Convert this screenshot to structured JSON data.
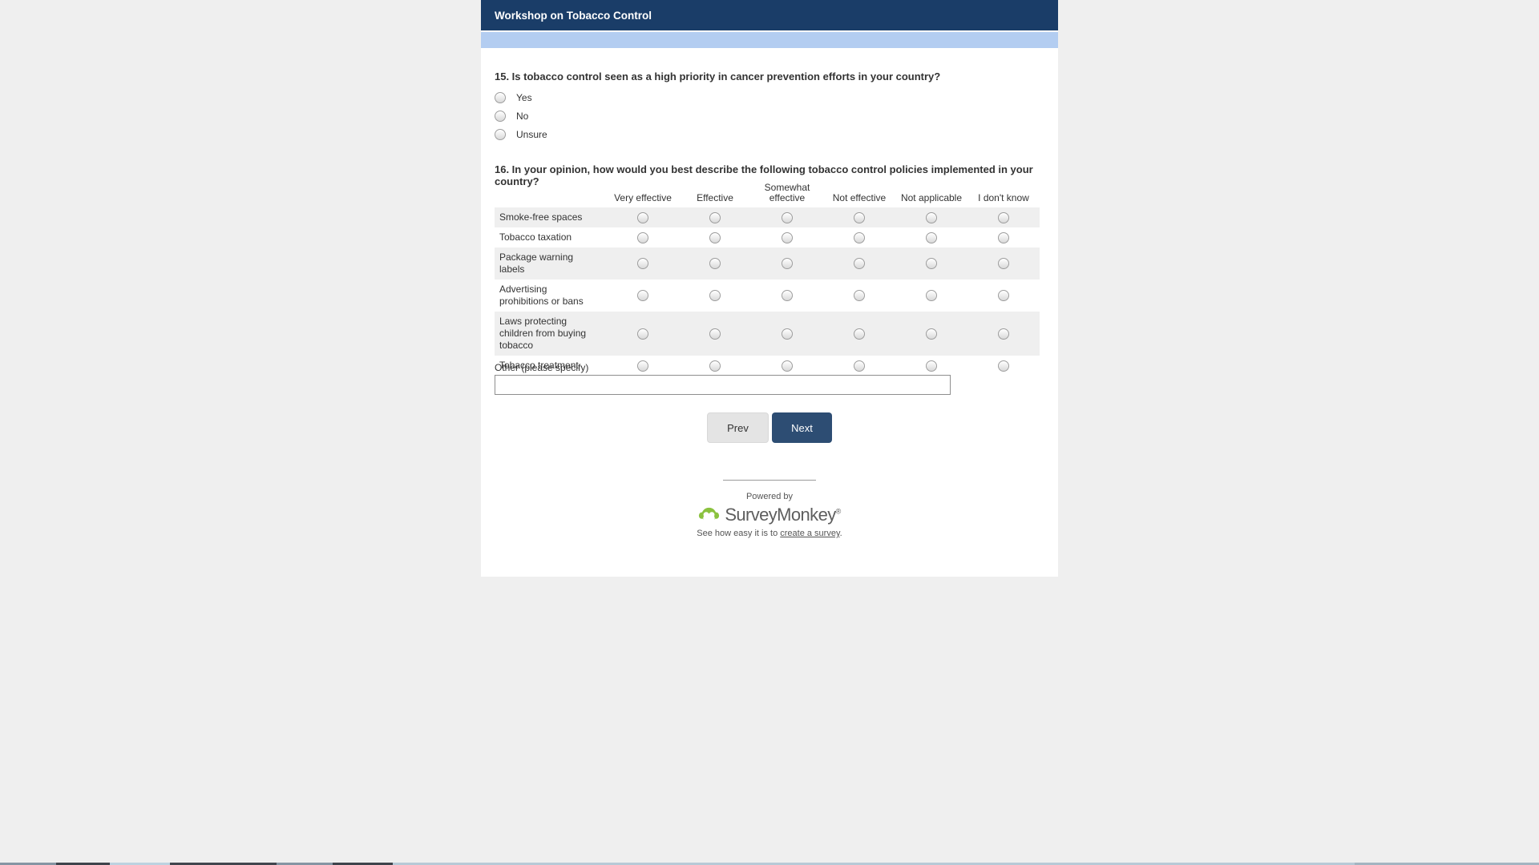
{
  "page": {
    "title": "Workshop on Tobacco Control"
  },
  "q15": {
    "label": "15. Is tobacco control seen as a high priority in cancer prevention efforts in your country?",
    "options": [
      "Yes",
      "No",
      "Unsure"
    ]
  },
  "q16": {
    "label": "16. In your opinion, how would you best describe the following tobacco control policies implemented in your country?",
    "columns": [
      "Very effective",
      "Effective",
      "Somewhat effective",
      "Not effective",
      "Not applicable",
      "I don't know"
    ],
    "rows": [
      "Smoke-free spaces",
      "Tobacco taxation",
      "Package warning labels",
      "Advertising prohibitions or bans",
      "Laws protecting children from buying tobacco",
      "Tobacco treatment"
    ],
    "other_label": "Other (please specify)",
    "other_value": ""
  },
  "buttons": {
    "prev": "Prev",
    "next": "Next"
  },
  "footer": {
    "powered_by": "Powered by",
    "logo_text": "SurveyMonkey",
    "registered": "®",
    "tagline_prefix": "See how easy it is to ",
    "tagline_link": "create a survey",
    "tagline_suffix": "."
  },
  "colors": {
    "header_bg": "#1a3d68",
    "progress_bg": "#b3cdf1",
    "next_bg": "#2d4d73",
    "row_alt": "#efefef",
    "logo_green": "#8bc23f"
  }
}
